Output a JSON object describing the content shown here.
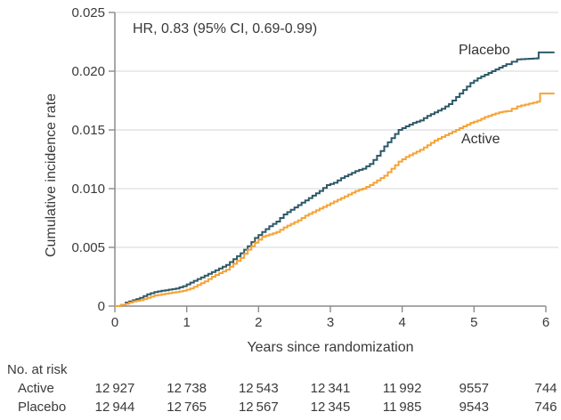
{
  "figure": {
    "annotation": "HR, 0.83 (95% CI, 0.69-0.99)",
    "y_axis_title": "Cumulative incidence rate",
    "x_axis_title": "Years since randomization",
    "curve_labels": {
      "placebo": "Placebo",
      "active": "Active"
    }
  },
  "colors": {
    "placebo_line": "#2d5968",
    "active_line": "#f6a233",
    "gridline": "#dedede",
    "axis": "#8c8c8c",
    "text": "#3a3a3a"
  },
  "chart_data": {
    "type": "line",
    "subtype": "cumulative-incidence-step-curves",
    "title": "",
    "xlabel": "Years since randomization",
    "ylabel": "Cumulative incidence rate",
    "xlim": [
      0,
      6
    ],
    "ylim": [
      0,
      0.025
    ],
    "x_ticks": [
      0,
      1,
      2,
      3,
      4,
      5,
      6
    ],
    "x_tick_labels": [
      "0",
      "1",
      "2",
      "3",
      "4",
      "5",
      "6"
    ],
    "y_ticks": [
      0,
      0.005,
      0.01,
      0.015,
      0.02,
      0.025
    ],
    "y_tick_labels": [
      "0",
      "0.005",
      "0.010",
      "0.015",
      "0.020",
      "0.025"
    ],
    "grid": "horizontal-only",
    "legend_position": "inline-curve-labels",
    "annotation": "HR, 0.83 (95% CI, 0.69-0.99)",
    "series": [
      {
        "name": "Placebo",
        "color": "#2d5968",
        "points": [
          [
            0,
            0
          ],
          [
            0.08,
            0.0001
          ],
          [
            0.15,
            0.0003
          ],
          [
            0.25,
            0.0005
          ],
          [
            0.35,
            0.0007
          ],
          [
            0.45,
            0.001
          ],
          [
            0.55,
            0.0012
          ],
          [
            0.65,
            0.0013
          ],
          [
            0.75,
            0.0014
          ],
          [
            0.85,
            0.0015
          ],
          [
            0.95,
            0.0017
          ],
          [
            1.05,
            0.002
          ],
          [
            1.15,
            0.0023
          ],
          [
            1.25,
            0.0026
          ],
          [
            1.35,
            0.0029
          ],
          [
            1.45,
            0.0032
          ],
          [
            1.55,
            0.0035
          ],
          [
            1.65,
            0.004
          ],
          [
            1.75,
            0.0045
          ],
          [
            1.85,
            0.0051
          ],
          [
            1.95,
            0.0058
          ],
          [
            2.05,
            0.0063
          ],
          [
            2.15,
            0.0068
          ],
          [
            2.25,
            0.0072
          ],
          [
            2.35,
            0.0078
          ],
          [
            2.45,
            0.0082
          ],
          [
            2.55,
            0.0086
          ],
          [
            2.65,
            0.009
          ],
          [
            2.75,
            0.0094
          ],
          [
            2.85,
            0.0098
          ],
          [
            2.95,
            0.0103
          ],
          [
            3.05,
            0.0105
          ],
          [
            3.15,
            0.0109
          ],
          [
            3.25,
            0.0112
          ],
          [
            3.35,
            0.0115
          ],
          [
            3.45,
            0.0117
          ],
          [
            3.55,
            0.0121
          ],
          [
            3.65,
            0.0128
          ],
          [
            3.75,
            0.0136
          ],
          [
            3.85,
            0.0143
          ],
          [
            3.95,
            0.015
          ],
          [
            4.05,
            0.0153
          ],
          [
            4.15,
            0.0156
          ],
          [
            4.25,
            0.0158
          ],
          [
            4.35,
            0.0162
          ],
          [
            4.45,
            0.0165
          ],
          [
            4.55,
            0.0168
          ],
          [
            4.65,
            0.0172
          ],
          [
            4.75,
            0.0178
          ],
          [
            4.85,
            0.0184
          ],
          [
            4.95,
            0.019
          ],
          [
            5.05,
            0.0194
          ],
          [
            5.15,
            0.0197
          ],
          [
            5.25,
            0.02
          ],
          [
            5.35,
            0.0203
          ],
          [
            5.45,
            0.0206
          ],
          [
            5.6,
            0.021
          ],
          [
            5.88,
            0.0211
          ],
          [
            5.9,
            0.0216
          ],
          [
            6.12,
            0.0216
          ]
        ]
      },
      {
        "name": "Active",
        "color": "#f6a233",
        "points": [
          [
            0,
            0
          ],
          [
            0.08,
            0.0001
          ],
          [
            0.15,
            0.0002
          ],
          [
            0.25,
            0.0004
          ],
          [
            0.35,
            0.0005
          ],
          [
            0.45,
            0.0007
          ],
          [
            0.55,
            0.0009
          ],
          [
            0.65,
            0.001
          ],
          [
            0.75,
            0.0011
          ],
          [
            0.85,
            0.0012
          ],
          [
            0.95,
            0.0013
          ],
          [
            1.05,
            0.0015
          ],
          [
            1.15,
            0.0018
          ],
          [
            1.25,
            0.0021
          ],
          [
            1.35,
            0.0025
          ],
          [
            1.45,
            0.0028
          ],
          [
            1.55,
            0.0031
          ],
          [
            1.65,
            0.0036
          ],
          [
            1.75,
            0.0041
          ],
          [
            1.85,
            0.0048
          ],
          [
            1.95,
            0.0054
          ],
          [
            2.05,
            0.0059
          ],
          [
            2.15,
            0.0061
          ],
          [
            2.25,
            0.0063
          ],
          [
            2.35,
            0.0067
          ],
          [
            2.45,
            0.007
          ],
          [
            2.55,
            0.0073
          ],
          [
            2.65,
            0.0077
          ],
          [
            2.75,
            0.008
          ],
          [
            2.85,
            0.0083
          ],
          [
            2.95,
            0.0086
          ],
          [
            3.05,
            0.0089
          ],
          [
            3.15,
            0.0092
          ],
          [
            3.25,
            0.0095
          ],
          [
            3.35,
            0.0098
          ],
          [
            3.45,
            0.01
          ],
          [
            3.55,
            0.0103
          ],
          [
            3.65,
            0.0107
          ],
          [
            3.75,
            0.0111
          ],
          [
            3.85,
            0.0117
          ],
          [
            3.95,
            0.0123
          ],
          [
            4.05,
            0.0127
          ],
          [
            4.15,
            0.013
          ],
          [
            4.25,
            0.0133
          ],
          [
            4.35,
            0.0137
          ],
          [
            4.45,
            0.0141
          ],
          [
            4.55,
            0.0144
          ],
          [
            4.65,
            0.0147
          ],
          [
            4.75,
            0.015
          ],
          [
            4.85,
            0.0153
          ],
          [
            4.95,
            0.0156
          ],
          [
            5.05,
            0.0158
          ],
          [
            5.15,
            0.0161
          ],
          [
            5.25,
            0.0163
          ],
          [
            5.35,
            0.0165
          ],
          [
            5.45,
            0.0166
          ],
          [
            5.6,
            0.017
          ],
          [
            5.88,
            0.0174
          ],
          [
            5.92,
            0.0181
          ],
          [
            6.12,
            0.0181
          ]
        ]
      }
    ]
  },
  "risk_table": {
    "title": "No. at risk",
    "columns_years": [
      0,
      1,
      2,
      3,
      4,
      5,
      6
    ],
    "rows": [
      {
        "label": "Active",
        "values": [
          "12 927",
          "12 738",
          "12 543",
          "12 341",
          "11 992",
          "9557",
          "744"
        ]
      },
      {
        "label": "Placebo",
        "values": [
          "12 944",
          "12 765",
          "12 567",
          "12 345",
          "11 985",
          "9543",
          "746"
        ]
      }
    ]
  }
}
